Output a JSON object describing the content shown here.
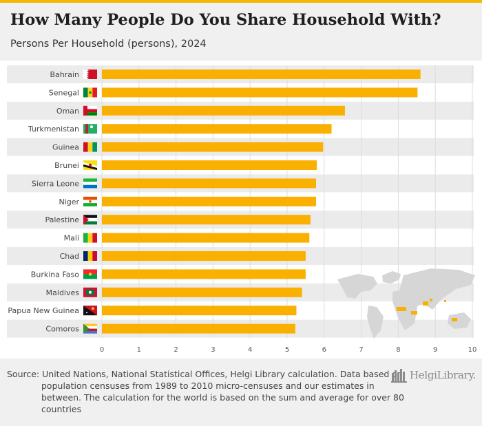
{
  "header": {
    "title": "How Many People Do You Share Household With?",
    "subtitle": "Persons Per Household (persons), 2024"
  },
  "footer": {
    "source": "Source: United Nations, National Statistical Offices, Helgi Library calculation. Data based on population censuses from 1989 to 2010 micro-censuses and our estimates in between. The calculation for the world is based on the sum and average for over 80 countries",
    "logo_text": "HelgiLibrary."
  },
  "colors": {
    "bar": "#f9b000",
    "accent": "#f5b800",
    "row_band": "#ebebeb",
    "grid": "#dddddd"
  },
  "chart_data": {
    "type": "bar",
    "orientation": "horizontal",
    "title": "How Many People Do You Share Household With?",
    "subtitle": "Persons Per Household (persons), 2024",
    "categories": [
      "Bahrain",
      "Senegal",
      "Oman",
      "Turkmenistan",
      "Guinea",
      "Brunei",
      "Sierra Leone",
      "Niger",
      "Palestine",
      "Mali",
      "Chad",
      "Burkina Faso",
      "Maldives",
      "Papua New Guinea",
      "Comoros"
    ],
    "values": [
      8.6,
      8.52,
      6.56,
      6.2,
      5.97,
      5.8,
      5.78,
      5.78,
      5.63,
      5.6,
      5.5,
      5.5,
      5.4,
      5.25,
      5.22
    ],
    "flags": [
      "bahrain-flag",
      "senegal-flag",
      "oman-flag",
      "turkmenistan-flag",
      "guinea-flag",
      "brunei-flag",
      "sierra-leone-flag",
      "niger-flag",
      "palestine-flag",
      "mali-flag",
      "chad-flag",
      "burkina-faso-flag",
      "maldives-flag",
      "papua-new-guinea-flag",
      "comoros-flag"
    ],
    "xlim": [
      0,
      10
    ],
    "xticks": [
      0,
      1,
      2,
      3,
      4,
      5,
      6,
      7,
      8,
      9,
      10
    ],
    "xlabel": "",
    "ylabel": "",
    "grid": true,
    "legend": "none",
    "decoration": "world-map"
  }
}
